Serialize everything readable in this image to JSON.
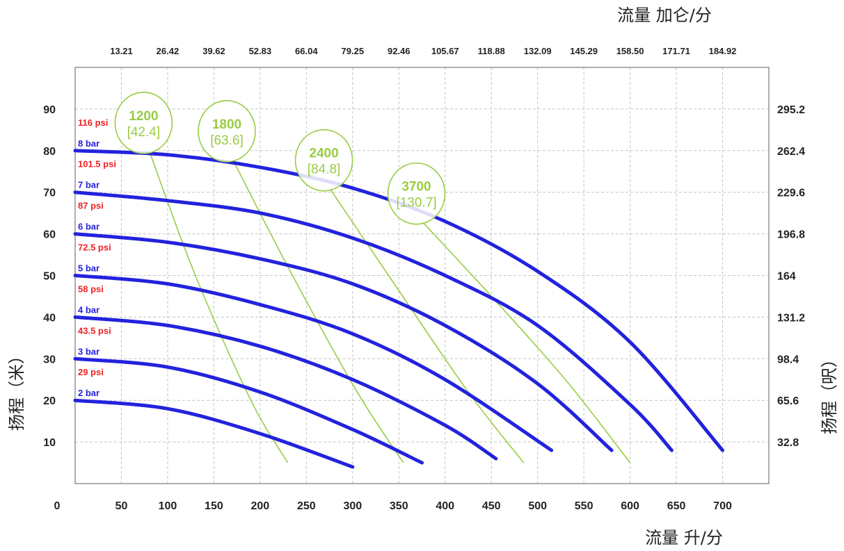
{
  "chart_data": {
    "type": "line",
    "x_axis_bottom": {
      "title": "流量 升/分",
      "origin_label": "0",
      "ticks": [
        "50",
        "100",
        "150",
        "200",
        "250",
        "300",
        "350",
        "400",
        "450",
        "500",
        "550",
        "600",
        "650",
        "700"
      ],
      "range": [
        0,
        750
      ]
    },
    "x_axis_top": {
      "title": "流量 加仑/分",
      "ticks": [
        "13.21",
        "26.42",
        "39.62",
        "52.83",
        "66.04",
        "79.25",
        "92.46",
        "105.67",
        "118.88",
        "132.09",
        "145.29",
        "158.50",
        "171.71",
        "184.92"
      ]
    },
    "y_axis_left": {
      "title": "扬程（米）",
      "ticks": [
        "10",
        "20",
        "30",
        "40",
        "50",
        "60",
        "70",
        "80",
        "90"
      ],
      "range": [
        0,
        100
      ]
    },
    "y_axis_right": {
      "title": "扬程（呎）",
      "ticks": [
        "32.8",
        "65.6",
        "98.4",
        "131.2",
        "164",
        "196.8",
        "229.6",
        "262.4",
        "295.2"
      ]
    },
    "grid": true,
    "pressure_colors": {
      "bar": "#2222dd",
      "psi": "#ee2222",
      "air": "#99cc44"
    },
    "series": [
      {
        "name": "2 bar",
        "psi": "29 psi",
        "x": [
          0,
          100,
          200,
          300
        ],
        "y": [
          20,
          18,
          12,
          4
        ]
      },
      {
        "name": "3 bar",
        "psi": "43.5 psi",
        "x": [
          0,
          100,
          200,
          300,
          375
        ],
        "y": [
          30,
          28,
          22,
          13,
          5
        ]
      },
      {
        "name": "4 bar",
        "psi": "58 psi",
        "x": [
          0,
          100,
          200,
          300,
          400,
          455
        ],
        "y": [
          40,
          38,
          33,
          25,
          14,
          6
        ]
      },
      {
        "name": "5 bar",
        "psi": "72.5 psi",
        "x": [
          0,
          100,
          200,
          300,
          400,
          515
        ],
        "y": [
          50,
          48,
          43,
          36,
          25,
          8
        ]
      },
      {
        "name": "6 bar",
        "psi": "87 psi",
        "x": [
          0,
          100,
          200,
          300,
          400,
          500,
          580
        ],
        "y": [
          60,
          58,
          54,
          48,
          38,
          24,
          8
        ]
      },
      {
        "name": "7 bar",
        "psi": "101.5 psi",
        "x": [
          0,
          100,
          200,
          300,
          400,
          500,
          600,
          645
        ],
        "y": [
          70,
          68,
          65,
          59,
          50,
          38,
          19,
          8
        ]
      },
      {
        "name": "8 bar",
        "psi": "116 psi",
        "x": [
          0,
          100,
          200,
          300,
          400,
          500,
          600,
          700
        ],
        "y": [
          80,
          79,
          76,
          71,
          63,
          51,
          34,
          8
        ]
      }
    ],
    "air_consumption": [
      {
        "label": "1200",
        "sub": "[42.4]",
        "x": [
          80,
          130,
          190,
          230
        ],
        "y": [
          80,
          50,
          20,
          5
        ]
      },
      {
        "label": "1800",
        "sub": "[63.6]",
        "x": [
          170,
          235,
          305,
          355
        ],
        "y": [
          78,
          50,
          22,
          5
        ]
      },
      {
        "label": "2400",
        "sub": "[84.8]",
        "x": [
          275,
          345,
          425,
          485
        ],
        "y": [
          71,
          48,
          22,
          5
        ]
      },
      {
        "label": "3700",
        "sub": "[130.7]",
        "x": [
          375,
          450,
          530,
          600
        ],
        "y": [
          63,
          45,
          25,
          5
        ]
      }
    ]
  }
}
